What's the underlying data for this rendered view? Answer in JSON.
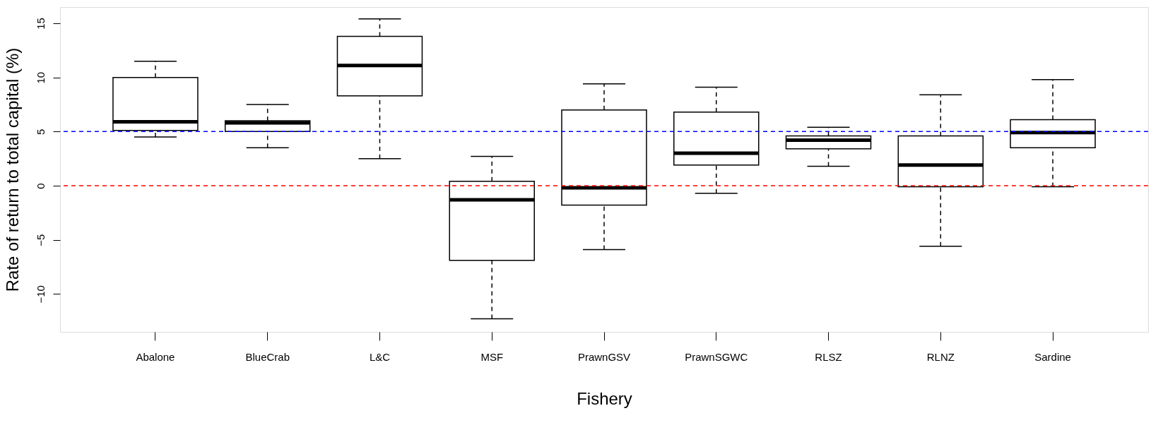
{
  "chart_data": {
    "type": "box",
    "xlabel": "Fishery",
    "ylabel": "Rate of return to total capital (%)",
    "categories": [
      "Abalone",
      "BlueCrab",
      "L&C",
      "MSF",
      "PrawnGSV",
      "PrawnSGWC",
      "RLSZ",
      "RLNZ",
      "Sardine"
    ],
    "boxes": [
      {
        "low": 4.5,
        "q1": 5.1,
        "median": 5.9,
        "q3": 10.0,
        "high": 11.5
      },
      {
        "low": 3.5,
        "q1": 5.0,
        "median": 5.8,
        "q3": 6.0,
        "high": 7.5
      },
      {
        "low": 2.5,
        "q1": 8.3,
        "median": 11.1,
        "q3": 13.8,
        "high": 15.4
      },
      {
        "low": -12.3,
        "q1": -6.9,
        "median": -1.3,
        "q3": 0.4,
        "high": 2.7
      },
      {
        "low": -5.9,
        "q1": -1.8,
        "median": -0.2,
        "q3": 7.0,
        "high": 9.4
      },
      {
        "low": -0.7,
        "q1": 1.9,
        "median": 3.0,
        "q3": 6.8,
        "high": 9.1
      },
      {
        "low": 1.8,
        "q1": 3.4,
        "median": 4.2,
        "q3": 4.6,
        "high": 5.4
      },
      {
        "low": -5.6,
        "q1": -0.1,
        "median": 1.9,
        "q3": 4.6,
        "high": 8.4
      },
      {
        "low": -0.1,
        "q1": 3.5,
        "median": 4.9,
        "q3": 6.1,
        "high": 9.8
      }
    ],
    "ylim": [
      -13.5,
      16.5
    ],
    "yticks": [
      -10,
      -5,
      0,
      5,
      10,
      15
    ],
    "ref_lines": [
      {
        "axis": "y",
        "value": 5,
        "color": "#0000ff",
        "line_style": "dashed"
      },
      {
        "axis": "y",
        "value": 0,
        "color": "#ff0000",
        "line_style": "dashed"
      }
    ]
  }
}
